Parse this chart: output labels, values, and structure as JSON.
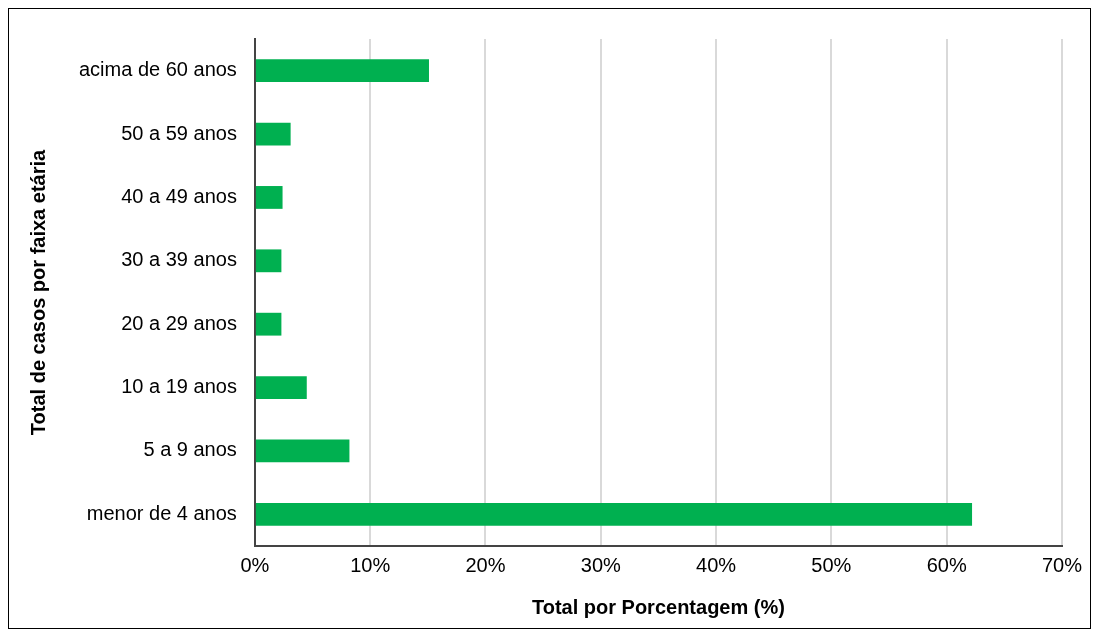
{
  "chart_data": {
    "type": "bar",
    "orientation": "horizontal",
    "xlabel": "Total por Porcentagem (%)",
    "ylabel": "Total de casos por faixa etária",
    "categories": [
      "acima de 60 anos",
      "50 a 59 anos",
      "40 a 49 anos",
      "30 a 39 anos",
      "20 a 29 anos",
      "10 a 19 anos",
      "5 a 9 anos",
      "menor de 4 anos"
    ],
    "values": [
      15.1,
      3.1,
      2.4,
      2.3,
      2.3,
      4.5,
      8.2,
      62.2
    ],
    "color": "#00b050",
    "xlim": [
      0,
      70
    ],
    "xticks": [
      {
        "value": 0,
        "label": "0%"
      },
      {
        "value": 10,
        "label": "10%"
      },
      {
        "value": 20,
        "label": "20%"
      },
      {
        "value": 30,
        "label": "30%"
      },
      {
        "value": 40,
        "label": "40%"
      },
      {
        "value": 50,
        "label": "50%"
      },
      {
        "value": 60,
        "label": "60%"
      },
      {
        "value": 70,
        "label": "70%"
      }
    ],
    "grid": "x",
    "legend": false
  }
}
